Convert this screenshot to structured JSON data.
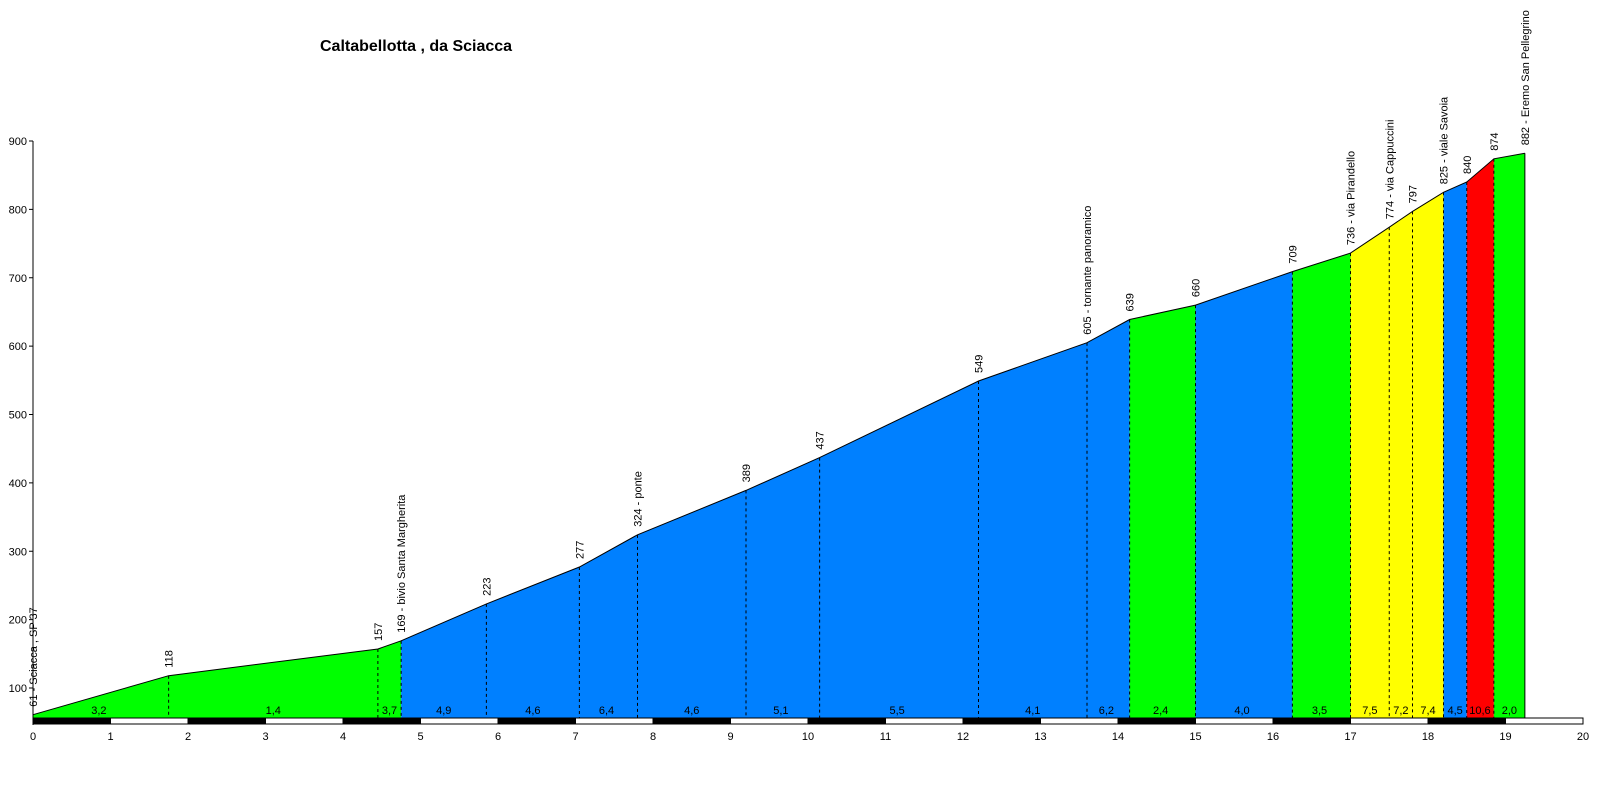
{
  "chart_data": {
    "type": "area",
    "title": "Caltabellotta , da Sciacca",
    "xlabel": "",
    "ylabel": "",
    "xlim": [
      0,
      20
    ],
    "ylim": [
      50,
      900
    ],
    "x_ticks": [
      "0",
      "1",
      "2",
      "3",
      "4",
      "5",
      "6",
      "7",
      "8",
      "9",
      "10",
      "11",
      "12",
      "13",
      "14",
      "15",
      "16",
      "17",
      "18",
      "19",
      "20"
    ],
    "y_ticks": [
      "100",
      "200",
      "300",
      "400",
      "500",
      "600",
      "700",
      "800",
      "900"
    ],
    "profile": [
      {
        "x": 0.0,
        "y": 61
      },
      {
        "x": 1.75,
        "y": 118
      },
      {
        "x": 4.45,
        "y": 157
      },
      {
        "x": 4.75,
        "y": 169
      },
      {
        "x": 5.85,
        "y": 223
      },
      {
        "x": 7.05,
        "y": 277
      },
      {
        "x": 7.8,
        "y": 324
      },
      {
        "x": 9.2,
        "y": 389
      },
      {
        "x": 10.15,
        "y": 437
      },
      {
        "x": 12.2,
        "y": 549
      },
      {
        "x": 13.6,
        "y": 605
      },
      {
        "x": 14.15,
        "y": 639
      },
      {
        "x": 15.0,
        "y": 660
      },
      {
        "x": 16.25,
        "y": 709
      },
      {
        "x": 17.0,
        "y": 736
      },
      {
        "x": 17.5,
        "y": 774
      },
      {
        "x": 17.8,
        "y": 797
      },
      {
        "x": 18.2,
        "y": 825
      },
      {
        "x": 18.5,
        "y": 840
      },
      {
        "x": 18.85,
        "y": 874
      },
      {
        "x": 19.25,
        "y": 882
      }
    ],
    "segments": [
      {
        "from": 0.0,
        "to": 4.75,
        "color": "#00ff00"
      },
      {
        "from": 4.75,
        "to": 14.15,
        "color": "#0080ff"
      },
      {
        "from": 14.15,
        "to": 15.0,
        "color": "#00ff00"
      },
      {
        "from": 15.0,
        "to": 16.25,
        "color": "#0080ff"
      },
      {
        "from": 16.25,
        "to": 17.0,
        "color": "#00ff00"
      },
      {
        "from": 17.0,
        "to": 18.2,
        "color": "#ffff00"
      },
      {
        "from": 18.2,
        "to": 18.5,
        "color": "#0080ff"
      },
      {
        "from": 18.5,
        "to": 18.85,
        "color": "#ff0000"
      },
      {
        "from": 18.85,
        "to": 19.25,
        "color": "#00ff00"
      }
    ],
    "gradient_labels": [
      {
        "x": 0.85,
        "label": "3,2"
      },
      {
        "x": 3.1,
        "label": "1,4"
      },
      {
        "x": 4.6,
        "label": "3,7"
      },
      {
        "x": 5.3,
        "label": "4,9"
      },
      {
        "x": 6.45,
        "label": "4,6"
      },
      {
        "x": 7.4,
        "label": "6,4"
      },
      {
        "x": 8.5,
        "label": "4,6"
      },
      {
        "x": 9.65,
        "label": "5,1"
      },
      {
        "x": 11.15,
        "label": "5,5"
      },
      {
        "x": 12.9,
        "label": "4,1"
      },
      {
        "x": 13.85,
        "label": "6,2"
      },
      {
        "x": 14.55,
        "label": "2,4"
      },
      {
        "x": 15.6,
        "label": "4,0"
      },
      {
        "x": 16.6,
        "label": "3,5"
      },
      {
        "x": 17.25,
        "label": "7,5"
      },
      {
        "x": 17.65,
        "label": "7,2"
      },
      {
        "x": 18.0,
        "label": "7,4"
      },
      {
        "x": 18.35,
        "label": "4,5"
      },
      {
        "x": 18.67,
        "label": "10,6"
      },
      {
        "x": 19.05,
        "label": "2,0"
      }
    ],
    "point_labels": [
      {
        "x": 0.0,
        "y": 61,
        "label": "61 - Sciacca , SP 37"
      },
      {
        "x": 1.75,
        "y": 118,
        "label": "118"
      },
      {
        "x": 4.45,
        "y": 157,
        "label": "157"
      },
      {
        "x": 4.75,
        "y": 169,
        "label": "169 - bivio Santa Margherita"
      },
      {
        "x": 5.85,
        "y": 223,
        "label": "223"
      },
      {
        "x": 7.05,
        "y": 277,
        "label": "277"
      },
      {
        "x": 7.8,
        "y": 324,
        "label": "324 - ponte"
      },
      {
        "x": 9.2,
        "y": 389,
        "label": "389"
      },
      {
        "x": 10.15,
        "y": 437,
        "label": "437"
      },
      {
        "x": 12.2,
        "y": 549,
        "label": "549"
      },
      {
        "x": 13.6,
        "y": 605,
        "label": "605 - tornante panoramico"
      },
      {
        "x": 14.15,
        "y": 639,
        "label": "639"
      },
      {
        "x": 15.0,
        "y": 660,
        "label": "660"
      },
      {
        "x": 16.25,
        "y": 709,
        "label": "709"
      },
      {
        "x": 17.0,
        "y": 736,
        "label": "736 - via Pirandello"
      },
      {
        "x": 17.5,
        "y": 774,
        "label": "774 - via Cappuccini"
      },
      {
        "x": 17.8,
        "y": 797,
        "label": "797"
      },
      {
        "x": 18.2,
        "y": 825,
        "label": "825 - viale Savoia"
      },
      {
        "x": 18.5,
        "y": 840,
        "label": "840"
      },
      {
        "x": 18.85,
        "y": 874,
        "label": "874"
      },
      {
        "x": 19.25,
        "y": 882,
        "label": "882 - Eremo San Pellegrino"
      }
    ],
    "grid": false,
    "legend": "none"
  }
}
